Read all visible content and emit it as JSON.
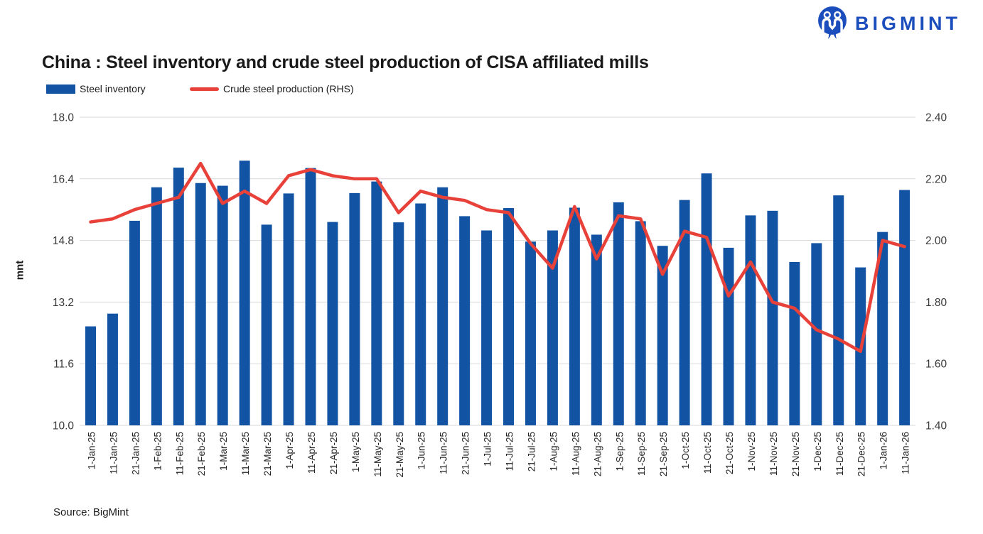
{
  "logo": {
    "brand": "BIGMINT",
    "color": "#1C4DBC"
  },
  "source_note": "Source: BigMint",
  "colors": {
    "bar": "#1254A3",
    "line": "#E8413A",
    "grid": "#D9D9D9",
    "axis_text": "#3a3a3a",
    "category_text": "#262626"
  },
  "chart_data": {
    "type": "combo",
    "title": "China : Steel inventory and crude steel production of CISA affiliated mills",
    "legend_position": "top-left",
    "grid": true,
    "categories": [
      "1-Jan-25",
      "11-Jan-25",
      "21-Jan-25",
      "1-Feb-25",
      "11-Feb-25",
      "21-Feb-25",
      "1-Mar-25",
      "11-Mar-25",
      "21-Mar-25",
      "1-Apr-25",
      "11-Apr-25",
      "21-Apr-25",
      "1-May-25",
      "11-May-25",
      "21-May-25",
      "1-Jun-25",
      "11-Jun-25",
      "21-Jun-25",
      "1-Jul-25",
      "11-Jul-25",
      "21-Jul-25",
      "1-Aug-25",
      "11-Aug-25",
      "21-Aug-25",
      "1-Sep-25",
      "11-Sep-25",
      "21-Sep-25",
      "1-Oct-25",
      "11-Oct-25",
      "21-Oct-25",
      "1-Nov-25",
      "11-Nov-25",
      "21-Nov-25",
      "1-Dec-25",
      "11-Dec-25",
      "21-Dec-25",
      "1-Jan-26",
      "11-Jan-26"
    ],
    "series": [
      {
        "name": "Steel inventory",
        "type": "bar",
        "yaxis": "left",
        "color": "#1254A3",
        "values": [
          12.57,
          12.9,
          15.31,
          16.18,
          16.69,
          16.29,
          16.22,
          16.87,
          15.21,
          16.02,
          16.68,
          15.28,
          16.03,
          16.33,
          15.27,
          15.76,
          16.18,
          15.43,
          15.06,
          15.64,
          14.77,
          15.06,
          15.65,
          14.95,
          15.79,
          15.3,
          14.66,
          15.85,
          16.54,
          14.61,
          15.45,
          15.57,
          14.24,
          14.73,
          15.97,
          14.1,
          15.02,
          16.11
        ]
      },
      {
        "name": "Crude steel production (RHS)",
        "type": "line",
        "yaxis": "right",
        "color": "#E8413A",
        "values": [
          2.06,
          2.07,
          2.1,
          2.12,
          2.14,
          2.25,
          2.12,
          2.16,
          2.12,
          2.21,
          2.23,
          2.21,
          2.2,
          2.2,
          2.09,
          2.16,
          2.14,
          2.13,
          2.1,
          2.09,
          1.99,
          1.91,
          2.11,
          1.94,
          2.08,
          2.07,
          1.89,
          2.03,
          2.01,
          1.82,
          1.93,
          1.8,
          1.78,
          1.71,
          1.68,
          1.64,
          2.0,
          1.98
        ]
      }
    ],
    "left_axis": {
      "title": "mnt",
      "min": 10.0,
      "max": 18.0,
      "tick_labels": [
        "18.0",
        "16.4",
        "14.8",
        "13.2",
        "11.6",
        "10.0"
      ]
    },
    "right_axis": {
      "min": 1.4,
      "max": 2.4,
      "tick_labels": [
        "2.40",
        "2.20",
        "2.00",
        "1.80",
        "1.60",
        "1.40"
      ]
    }
  }
}
